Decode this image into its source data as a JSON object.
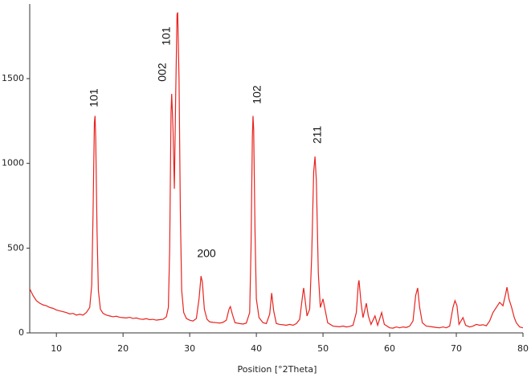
{
  "chart_data": {
    "type": "line",
    "x_label": "Position [°2Theta]",
    "annotations": [
      "101",
      "002",
      "101",
      "200",
      "102",
      "211"
    ],
    "xlim": [
      6,
      80
    ],
    "xticks": [
      10,
      20,
      30,
      40,
      50,
      60,
      70,
      80
    ],
    "ylim": [
      0,
      1940
    ],
    "yticks": [
      0,
      500,
      1000,
      1500
    ],
    "series": [
      {
        "color": "#e8231e",
        "x": [
          6,
          6.5,
          7,
          7.5,
          8,
          8.5,
          9,
          9.5,
          10,
          10.5,
          11,
          11.5,
          12,
          12.5,
          13,
          13.5,
          14,
          14.5,
          15,
          15.3,
          15.5,
          15.7,
          15.8,
          15.9,
          16.1,
          16.3,
          16.6,
          17,
          17.5,
          18,
          18.5,
          19,
          19.5,
          20,
          20.5,
          21,
          21.5,
          22,
          22.5,
          23,
          23.5,
          24,
          24.5,
          25,
          25.5,
          26,
          26.5,
          26.8,
          27.0,
          27.2,
          27.3,
          27.5,
          27.7,
          27.9,
          28.1,
          28.2,
          28.4,
          28.6,
          28.8,
          29.1,
          29.5,
          30,
          30.5,
          31,
          31.4,
          31.7,
          31.9,
          32.2,
          32.6,
          33,
          33.5,
          34,
          34.5,
          35,
          35.5,
          35.9,
          36.1,
          36.4,
          36.8,
          37.5,
          38,
          38.5,
          39,
          39.2,
          39.4,
          39.5,
          39.6,
          39.8,
          40,
          40.4,
          41,
          41.5,
          42,
          42.3,
          42.6,
          43,
          43.5,
          44,
          44.5,
          45,
          45.5,
          46,
          46.5,
          47,
          47.1,
          47.3,
          47.6,
          48,
          48.3,
          48.6,
          48.8,
          49,
          49.3,
          49.6,
          50,
          50.3,
          50.7,
          51.5,
          52,
          52.5,
          53,
          53.5,
          54,
          54.5,
          55,
          55.3,
          55.4,
          55.7,
          56,
          56.5,
          56.8,
          57.2,
          57.8,
          58.2,
          58.8,
          59.2,
          60,
          60.5,
          61,
          61.5,
          62,
          62.5,
          63,
          63.5,
          63.9,
          64.2,
          64.5,
          64.9,
          65.5,
          66,
          66.5,
          67,
          67.5,
          68,
          68.5,
          69,
          69.5,
          69.8,
          70.1,
          70.4,
          71,
          71.4,
          72,
          72.5,
          73,
          73.5,
          74,
          74.5,
          75,
          75.5,
          76,
          76.5,
          77,
          77.4,
          77.6,
          77.9,
          78.3,
          78.7,
          79,
          79.5,
          80
        ],
        "values": [
          260,
          220,
          190,
          175,
          165,
          160,
          150,
          145,
          135,
          130,
          125,
          120,
          112,
          115,
          105,
          110,
          105,
          120,
          150,
          280,
          700,
          1240,
          1280,
          1150,
          600,
          250,
          140,
          115,
          105,
          100,
          95,
          98,
          92,
          90,
          88,
          92,
          85,
          88,
          82,
          80,
          84,
          78,
          80,
          75,
          78,
          80,
          95,
          150,
          500,
          1300,
          1410,
          1200,
          850,
          1400,
          1880,
          1890,
          1500,
          700,
          250,
          120,
          85,
          75,
          70,
          85,
          200,
          335,
          300,
          140,
          80,
          65,
          62,
          60,
          58,
          62,
          75,
          140,
          155,
          110,
          60,
          55,
          52,
          58,
          120,
          500,
          1150,
          1280,
          1200,
          600,
          200,
          90,
          60,
          55,
          110,
          235,
          130,
          55,
          50,
          48,
          45,
          50,
          45,
          55,
          80,
          240,
          265,
          200,
          100,
          140,
          450,
          950,
          1040,
          900,
          350,
          150,
          200,
          140,
          60,
          40,
          38,
          36,
          40,
          35,
          38,
          45,
          120,
          290,
          310,
          180,
          90,
          175,
          100,
          50,
          100,
          45,
          120,
          50,
          30,
          28,
          35,
          30,
          35,
          32,
          40,
          70,
          220,
          265,
          150,
          60,
          40,
          38,
          35,
          32,
          30,
          35,
          30,
          40,
          150,
          190,
          160,
          50,
          90,
          45,
          35,
          40,
          50,
          45,
          48,
          42,
          70,
          120,
          150,
          180,
          160,
          230,
          270,
          200,
          150,
          90,
          60,
          35,
          30
        ]
      }
    ]
  }
}
